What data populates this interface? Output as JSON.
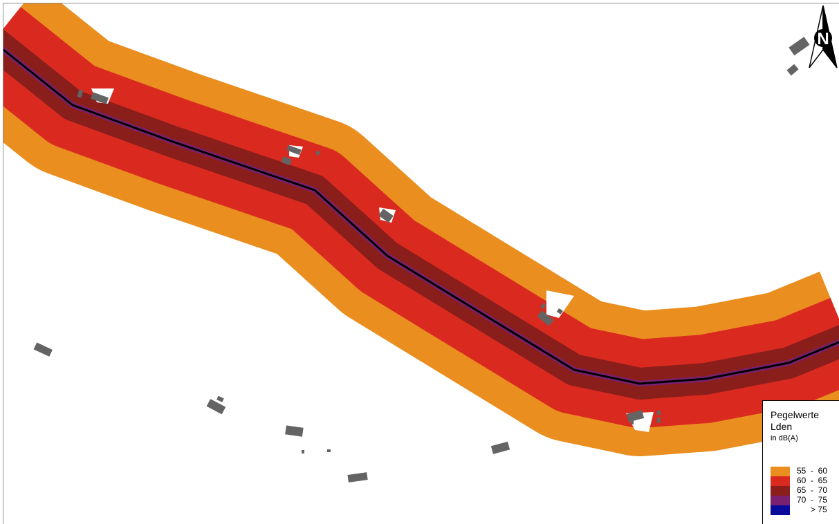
{
  "legend": {
    "title_line1": "Pegelwerte",
    "title_line2": "Lden",
    "unit": "in dB(A)",
    "classes": [
      {
        "label": "55  -  60",
        "color": "#E98E1F"
      },
      {
        "label": "60  -  65",
        "color": "#DA2A20"
      },
      {
        "label": "65  -  70",
        "color": "#8A1E1B"
      },
      {
        "label": "70  -  75",
        "color": "#7A2070"
      },
      {
        "label": "      > 75",
        "color": "#0A0A9A"
      }
    ]
  },
  "north_arrow": {
    "letter": "N"
  },
  "colors": {
    "road": "#000000",
    "building": "#646464",
    "background": "#ffffff"
  }
}
